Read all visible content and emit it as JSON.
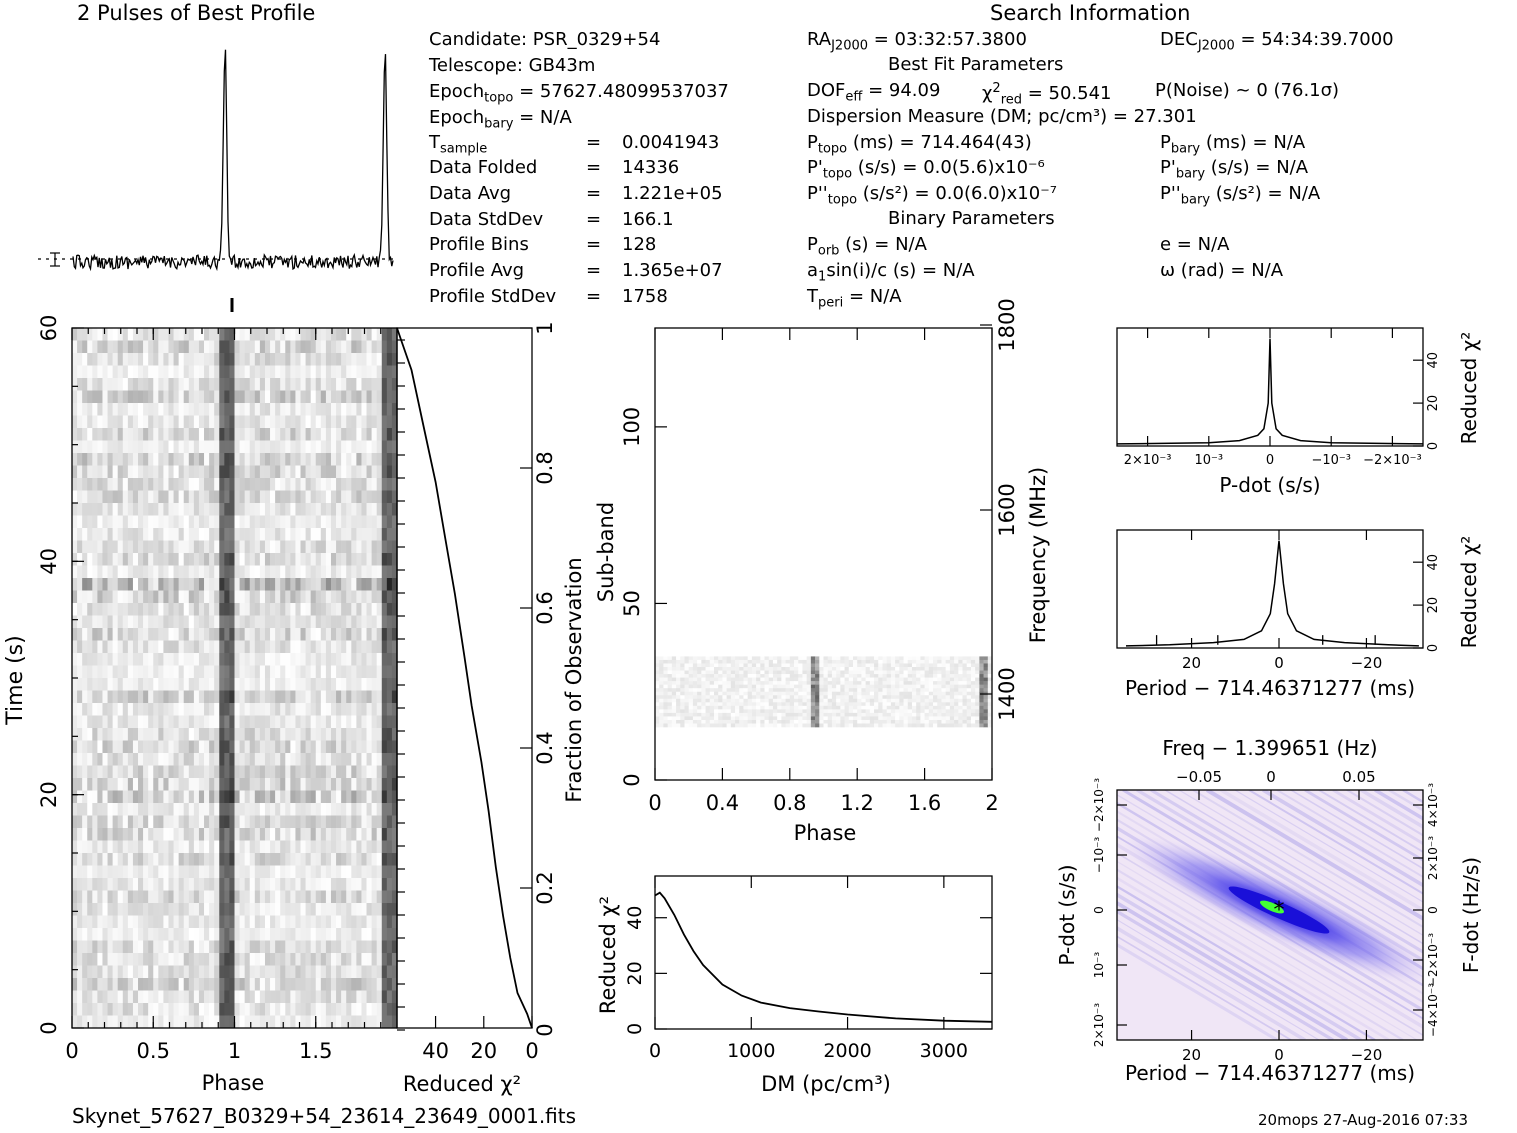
{
  "profile_title": "2 Pulses of Best Profile",
  "search_title": "Search Information",
  "best_fit_title": "Best Fit Parameters",
  "binary_title": "Binary Parameters",
  "filename": "Skynet_57627_B0329+54_23614_23649_0001.fits",
  "footer_stamp": "20mops 27-Aug-2016 07:33",
  "info_left": [
    {
      "label": "Candidate:  PSR_0329+54",
      "value": ""
    },
    {
      "label": "Telescope:  GB43m",
      "value": ""
    },
    {
      "label": "Epoch",
      "sub": "topo",
      "value": " = 57627.48099537037"
    },
    {
      "label": "Epoch",
      "sub": "bary",
      "value": " = N/A"
    },
    {
      "label": "T",
      "sub": "sample",
      "value": "0.0041943"
    },
    {
      "label": "Data Folded",
      "value": "14336"
    },
    {
      "label": "Data Avg",
      "value": "1.221e+05"
    },
    {
      "label": "Data StdDev",
      "value": "166.1"
    },
    {
      "label": "Profile Bins",
      "value": "128"
    },
    {
      "label": "Profile Avg",
      "value": "1.365e+07"
    },
    {
      "label": "Profile StdDev",
      "value": "1758"
    }
  ],
  "info_mid": {
    "ra": {
      "label": "RA",
      "sub": "J2000",
      "value": " = 03:32:57.3800"
    },
    "dec": {
      "label": "DEC",
      "sub": "J2000",
      "value": " = 54:34:39.7000"
    },
    "dof": {
      "label": "DOF",
      "sub": "eff",
      "value": " = 94.09"
    },
    "chi": {
      "label": "χ",
      "sup": "2",
      "sub": "red",
      "value": " = 50.541"
    },
    "pnoise": "P(Noise) ~ 0    (76.1σ)",
    "dm": "Dispersion Measure (DM; pc/cm³) = 27.301",
    "ptopo": {
      "label": "P",
      "sub": "topo",
      "value": " (ms) =  714.464(43)"
    },
    "pdtopo": {
      "label": "P'",
      "sub": "topo",
      "value": " (s/s) = 0.0(5.6)x10⁻⁶"
    },
    "pddtopo": {
      "label": "P''",
      "sub": "topo",
      "value": " (s/s²) = 0.0(6.0)x10⁻⁷"
    },
    "pbary": {
      "label": "P",
      "sub": "bary",
      "value": " (ms) = N/A"
    },
    "pdbary": {
      "label": "P'",
      "sub": "bary",
      "value": " (s/s) = N/A"
    },
    "pddbary": {
      "label": "P''",
      "sub": "bary",
      "value": " (s/s²) = N/A"
    },
    "porb": {
      "label": "P",
      "sub": "orb",
      "value": " (s) = N/A"
    },
    "asini": {
      "label": "a",
      "sub": "1",
      "value": "sin(i)/c (s) = N/A"
    },
    "tperi": {
      "label": "T",
      "sub": "peri",
      "value": " = N/A"
    },
    "ecc": "e = N/A",
    "omega": "ω (rad) = N/A"
  },
  "colors": {
    "ink": "#000000",
    "pp_blue": "#1a10d8",
    "pp_green": "#44ff33",
    "pp_bg": "#f0e6f6"
  },
  "chart_data": [
    {
      "type": "line",
      "name": "profile",
      "title": "2 Pulses of Best Profile",
      "x": "phase 0–2",
      "peaks_phase": [
        0.95,
        1.95
      ],
      "grid": false
    },
    {
      "type": "heatmap",
      "name": "time-phase",
      "xlabel": "Phase",
      "ylabel": "Time (s)",
      "xticks": [
        "0",
        "0.5",
        "1",
        "1.5"
      ],
      "yticks": [
        "0",
        "20",
        "40",
        "60"
      ],
      "xlim": [
        0,
        2
      ],
      "ylim": [
        0,
        60
      ],
      "pulse_phase": 0.95
    },
    {
      "type": "line",
      "name": "time-chi2",
      "xlabel": "Reduced χ²",
      "xticks": [
        "40",
        "20",
        "0"
      ],
      "right_label": "Fraction of Observation",
      "right_ticks": [
        "0.2",
        "0.4",
        "0.6",
        "0.8",
        "1"
      ],
      "x": [
        0,
        2,
        6,
        9,
        12,
        15,
        18,
        21,
        25,
        28,
        32,
        36,
        40,
        45,
        50,
        54,
        56
      ],
      "y": [
        0,
        0.02,
        0.05,
        0.1,
        0.16,
        0.23,
        0.31,
        0.38,
        0.46,
        0.53,
        0.62,
        0.7,
        0.78,
        0.86,
        0.94,
        0.98,
        1.0
      ]
    },
    {
      "type": "heatmap",
      "name": "subband-phase",
      "xlabel": "Phase",
      "ylabel": "Sub-band",
      "right_label": "Frequency (MHz)",
      "xticks": [
        "0",
        "0.4",
        "0.8",
        "1.2",
        "1.6",
        "2"
      ],
      "yticks": [
        "0",
        "50",
        "100"
      ],
      "right_ticks": [
        "1400",
        "1600",
        "1800"
      ],
      "xlim": [
        0,
        2
      ],
      "ylim": [
        0,
        128
      ],
      "occupied_subbands": [
        15,
        35
      ],
      "pulse_phase": [
        0.95,
        1.95
      ]
    },
    {
      "type": "line",
      "name": "dm-chi2",
      "xlabel": "DM (pc/cm³)",
      "ylabel": "Reduced χ²",
      "xticks": [
        "0",
        "1000",
        "2000",
        "3000"
      ],
      "yticks": [
        "0",
        "20",
        "40"
      ],
      "xlim": [
        0,
        3500
      ],
      "ylim": [
        0,
        55
      ],
      "x": [
        0,
        50,
        100,
        200,
        300,
        400,
        500,
        700,
        900,
        1100,
        1400,
        1700,
        2000,
        2500,
        3000,
        3500
      ],
      "y": [
        48,
        49,
        47,
        41,
        34,
        28,
        23,
        16,
        12,
        9.5,
        7.5,
        6.3,
        5.2,
        3.8,
        3.0,
        2.6
      ]
    },
    {
      "type": "line",
      "name": "pdot-chi2",
      "xlabel": "P-dot (s/s)",
      "ylabel": "Reduced χ²",
      "xticks": [
        "2×10⁻³",
        "10⁻³",
        "0",
        "−10⁻³",
        "−2×10⁻³"
      ],
      "yticks": [
        "0",
        "20",
        "40"
      ],
      "ylim": [
        0,
        55
      ],
      "x": [
        0.0025,
        0.001,
        0.0005,
        0.0002,
        0.0001,
        3e-05,
        0,
        -3e-05,
        -0.0001,
        -0.0002,
        -0.0005,
        -0.001,
        -0.0025
      ],
      "y": [
        1,
        1.5,
        2.5,
        5,
        8,
        20,
        50,
        20,
        8,
        5,
        2.5,
        1.5,
        1
      ]
    },
    {
      "type": "line",
      "name": "period-chi2",
      "xlabel": "Period − 714.46371277 (ms)",
      "ylabel": "Reduced χ²",
      "xticks": [
        "20",
        "0",
        "−20"
      ],
      "yticks": [
        "0",
        "20",
        "40"
      ],
      "ylim": [
        0,
        55
      ],
      "x": [
        35,
        25,
        15,
        8,
        4,
        2,
        1,
        0,
        -1,
        -2,
        -4,
        -8,
        -15,
        -25,
        -32
      ],
      "y": [
        1,
        1.5,
        2.5,
        4,
        8,
        16,
        30,
        50,
        30,
        16,
        8,
        4,
        2.5,
        1.5,
        1
      ]
    },
    {
      "type": "heatmap",
      "name": "p-pdot",
      "xlabel": "Period − 714.46371277 (ms)",
      "ylabel": "P-dot (s/s)",
      "toplabel": "Freq − 1.399651 (Hz)",
      "right_label": "F-dot (Hz/s)",
      "xticks": [
        "20",
        "0",
        "−20"
      ],
      "top_ticks": [
        "−0.05",
        "0",
        "0.05"
      ],
      "yticks": [
        "2×10⁻³",
        "10⁻³",
        "0",
        "−10⁻³",
        "−2×10⁻³"
      ],
      "right_ticks": [
        "−4×10⁻³",
        "−2×10⁻³",
        "0",
        "2×10⁻³",
        "4×10⁻³"
      ],
      "peak": [
        0,
        0
      ]
    }
  ]
}
